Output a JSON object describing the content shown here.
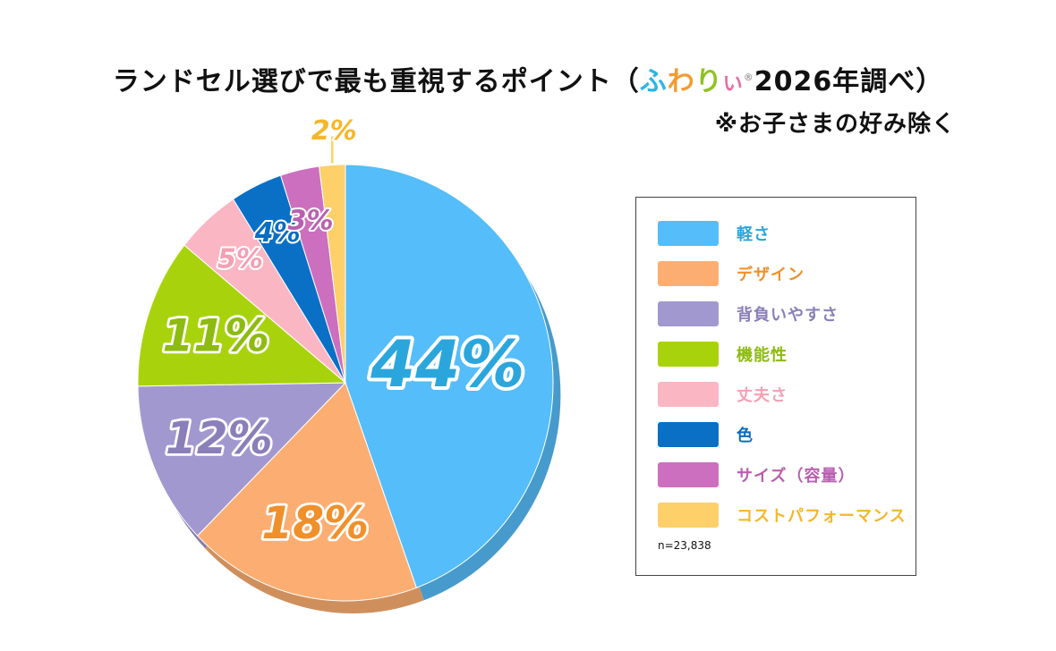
{
  "header": {
    "title_prefix": "ランドセル選びで最も重視するポイント（",
    "brand_chars": [
      "ふ",
      "わ",
      "り",
      "い"
    ],
    "brand_mark": "®",
    "title_suffix": "2026年調べ）",
    "subtitle": "※お子さまの好み除く"
  },
  "chart_data": {
    "type": "pie",
    "slices": [
      {
        "label": "軽さ",
        "value": 44,
        "color": "#55bdf9",
        "text_color": "#2ba6dd",
        "display": "44%"
      },
      {
        "label": "デザイン",
        "value": 18,
        "color": "#fcae72",
        "text_color": "#f0902a",
        "display": "18%"
      },
      {
        "label": "背負いやすさ",
        "value": 12,
        "color": "#a298d0",
        "text_color": "#8a7fb8",
        "display": "12%"
      },
      {
        "label": "機能性",
        "value": 11,
        "color": "#a8d30c",
        "text_color": "#8dbb10",
        "display": "11%"
      },
      {
        "label": "丈夫さ",
        "value": 5,
        "color": "#fbb6c4",
        "text_color": "#f3a0b4",
        "display": "5%"
      },
      {
        "label": "色",
        "value": 4,
        "color": "#0a70c6",
        "text_color": "#0a6dbe",
        "display": "4%"
      },
      {
        "label": "サイズ（容量）",
        "value": 3,
        "color": "#cc6fbf",
        "text_color": "#b85fb0",
        "display": "3%"
      },
      {
        "label": "コストパフォーマンス",
        "value": 2,
        "color": "#fdd06a",
        "text_color": "#f5b72a",
        "display": "2%"
      }
    ],
    "legend_placement": "right",
    "note": "n=23,838"
  }
}
